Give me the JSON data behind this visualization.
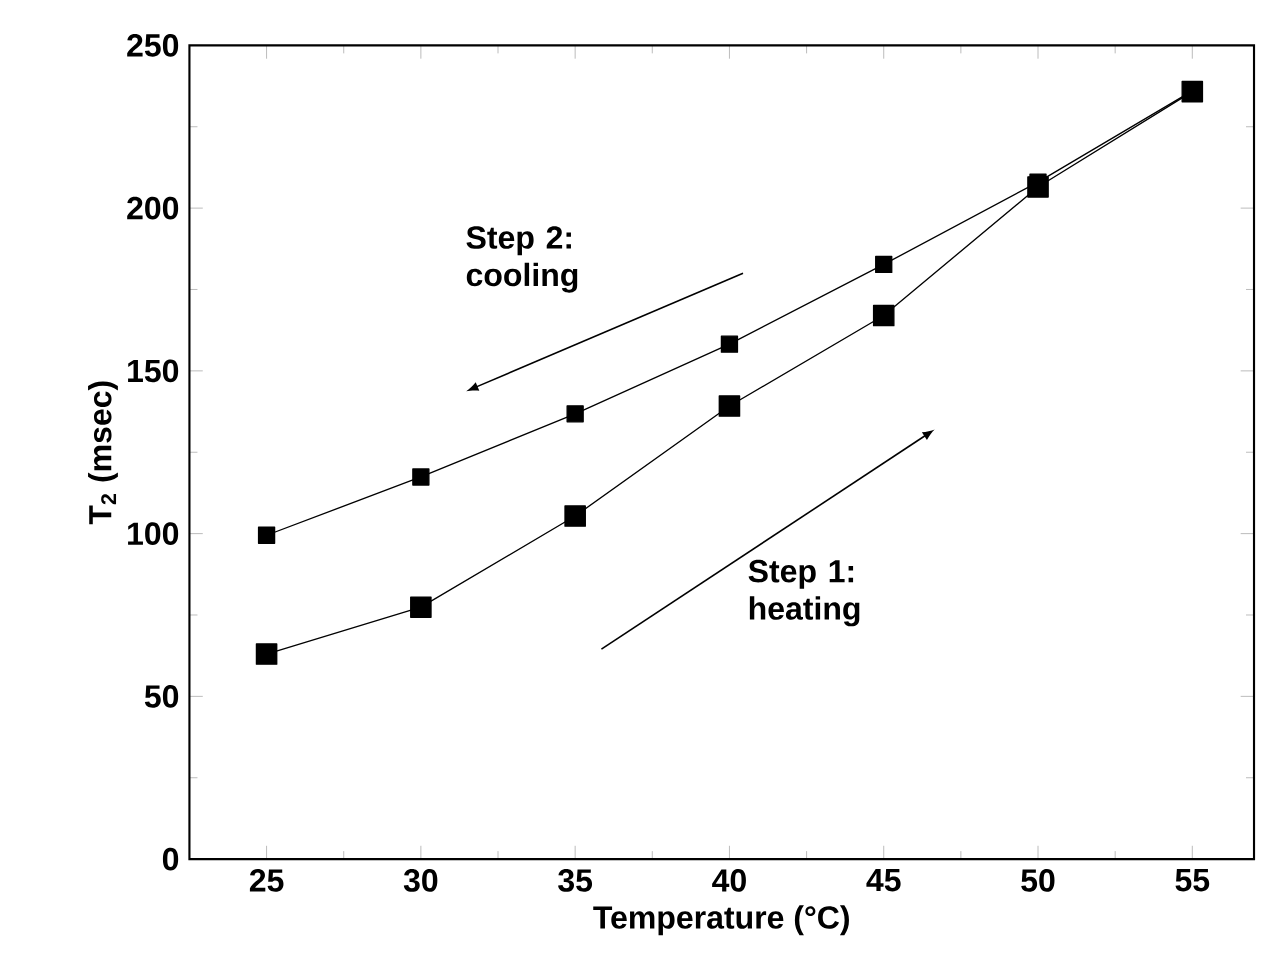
{
  "chart_data": {
    "type": "line",
    "xlabel": "Temperature (°C)",
    "ylabel": "T$_{2}$ (msec)",
    "x": [
      25,
      30,
      35,
      40,
      45,
      50,
      55
    ],
    "series": [
      {
        "color": "#000000",
        "values": [
          63,
          77.4,
          105.4,
          139.2,
          167,
          206.5,
          235.8
        ]
      },
      {
        "color": "#000000",
        "values": [
          99.5,
          117.4,
          136.8,
          158.2,
          182.7,
          208,
          236
        ]
      }
    ],
    "xlim": [
      22.5,
      57
    ],
    "ylim": [
      0,
      250
    ],
    "xticks": [
      25,
      30,
      35,
      40,
      45,
      50,
      55
    ],
    "yticks": [
      0,
      50,
      100,
      150,
      200,
      250
    ],
    "marker": "square",
    "line_style": "solid",
    "annotations": [
      "Step 2: cooling",
      "Step 1: heating"
    ]
  }
}
